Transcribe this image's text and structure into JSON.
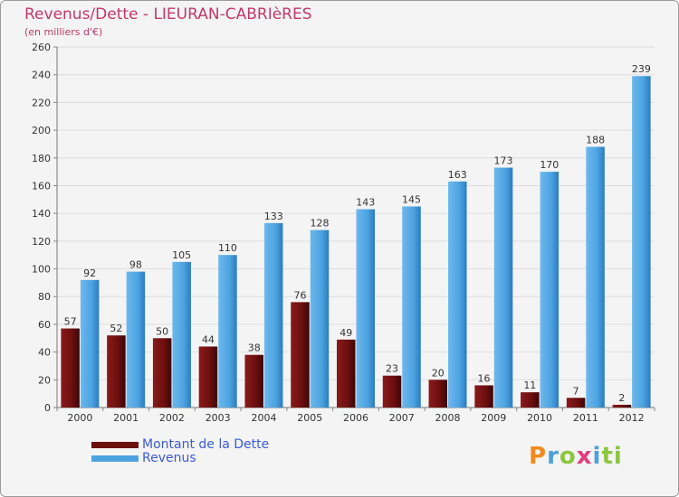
{
  "header": {
    "title": "Revenus/Dette - LIEURAN-CABRIèRES",
    "subtitle": "(en milliers d'€)"
  },
  "legend": {
    "debt_label": "Montant de la Dette",
    "revenue_label": "Revenus"
  },
  "logo": {
    "text": "Proxiti",
    "letters": [
      "P",
      "r",
      "o",
      "x",
      "i",
      "ti"
    ]
  },
  "colors": {
    "debt": "#6b0f0f",
    "revenue": "#4da3e0",
    "title": "#c0396a",
    "legend_text": "#3a5ad8"
  },
  "chart_data": {
    "type": "bar",
    "title": "Revenus/Dette - LIEURAN-CABRIèRES",
    "ylabel": "(en milliers d'€)",
    "xlabel": "",
    "categories": [
      "2000",
      "2001",
      "2002",
      "2003",
      "2004",
      "2005",
      "2006",
      "2007",
      "2008",
      "2009",
      "2010",
      "2011",
      "2012"
    ],
    "series": [
      {
        "name": "Montant de la Dette",
        "values": [
          57,
          52,
          50,
          44,
          38,
          76,
          49,
          23,
          20,
          16,
          11,
          7,
          2
        ]
      },
      {
        "name": "Revenus",
        "values": [
          92,
          98,
          105,
          110,
          133,
          128,
          143,
          145,
          163,
          173,
          170,
          188,
          239
        ]
      }
    ],
    "ylim": [
      0,
      260
    ],
    "yticks": [
      0,
      20,
      40,
      60,
      80,
      100,
      120,
      140,
      160,
      180,
      200,
      220,
      240,
      260
    ],
    "grid": true,
    "legend_position": "bottom-left"
  }
}
